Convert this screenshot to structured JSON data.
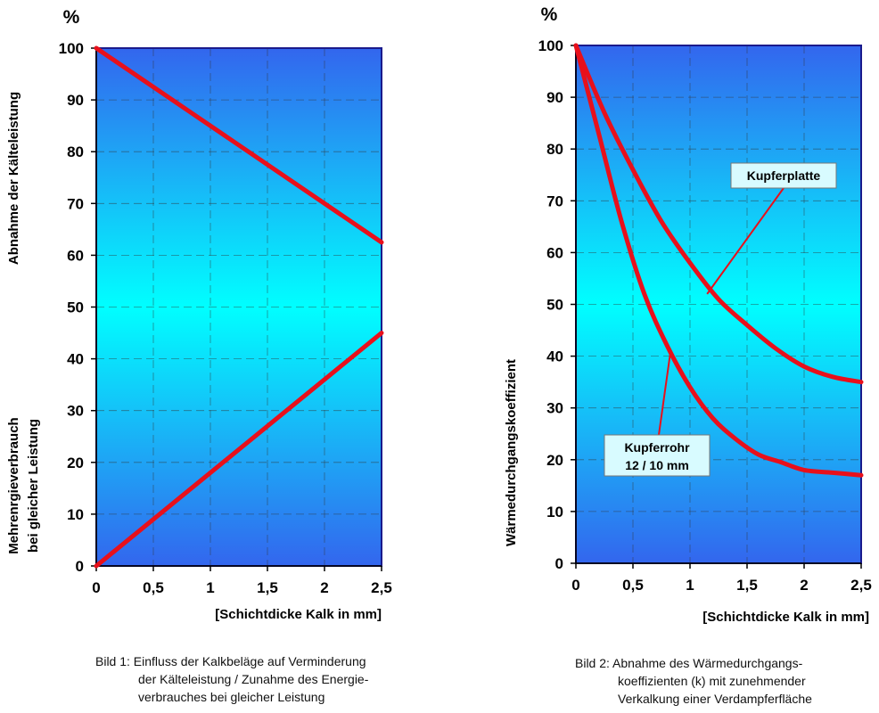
{
  "chart_data": [
    {
      "type": "line",
      "y_unit": "%",
      "xlabel": "[Schichtdicke Kalk in mm]",
      "ylabel_top": "Abnahme der Kälteleistung",
      "ylabel_bottom": [
        "Mehrenrgieverbrauch",
        "bei gleicher Leistung"
      ],
      "x_ticks": [
        "0",
        "0,5",
        "1",
        "1,5",
        "2",
        "2,5"
      ],
      "y_ticks": [
        "0",
        "10",
        "20",
        "30",
        "40",
        "50",
        "60",
        "70",
        "80",
        "90",
        "100"
      ],
      "xlim": [
        0,
        2.5
      ],
      "ylim": [
        0,
        100
      ],
      "grid": true,
      "series": [
        {
          "x": [
            0,
            2.5
          ],
          "y": [
            100,
            62.5
          ],
          "color": "#e8101b"
        },
        {
          "x": [
            0,
            2.5
          ],
          "y": [
            0,
            45
          ],
          "color": "#e8101b"
        }
      ],
      "caption": [
        "Bild 1: Einfluss der Kalkbeläge auf Verminderung",
        "der Kälteleistung / Zunahme des Energie-",
        "verbrauches bei gleicher Leistung"
      ]
    },
    {
      "type": "line",
      "y_unit": "%",
      "xlabel": "[Schichtdicke Kalk in mm]",
      "ylabel": "Wärmedurchgangskoeffizient",
      "x_ticks": [
        "0",
        "0,5",
        "1",
        "1,5",
        "2",
        "2,5"
      ],
      "y_ticks": [
        "0",
        "10",
        "20",
        "30",
        "40",
        "50",
        "60",
        "70",
        "80",
        "90",
        "100"
      ],
      "xlim": [
        0,
        2.5
      ],
      "ylim": [
        0,
        100
      ],
      "grid": true,
      "series": [
        {
          "name": "Kupferplatte",
          "x": [
            0,
            0.25,
            0.5,
            0.75,
            1.0,
            1.25,
            1.5,
            1.75,
            2.0,
            2.25,
            2.5
          ],
          "y": [
            100,
            87,
            76,
            66,
            58,
            51,
            46,
            41.5,
            38,
            36,
            35
          ],
          "color": "#e8101b"
        },
        {
          "name": "Kupferrohr 12 / 10 mm",
          "x": [
            0,
            0.2,
            0.4,
            0.6,
            0.8,
            1.0,
            1.2,
            1.4,
            1.6,
            1.8,
            2.0,
            2.25,
            2.5
          ],
          "y": [
            100,
            83,
            66,
            52,
            42,
            34,
            28,
            24,
            21,
            19.5,
            18,
            17.5,
            17
          ],
          "color": "#e8101b"
        }
      ],
      "annotations": [
        {
          "lines": [
            "Kupferplatte"
          ],
          "target": [
            1.15,
            52
          ]
        },
        {
          "lines": [
            "Kupferrohr",
            "12 / 10 mm"
          ],
          "target": [
            0.83,
            41
          ]
        }
      ],
      "caption": [
        "Bild 2: Abnahme des Wärmedurchgangs-",
        "koeffizienten (k) mit zunehmender",
        "Verkalkung einer Verdampferfläche"
      ]
    }
  ]
}
